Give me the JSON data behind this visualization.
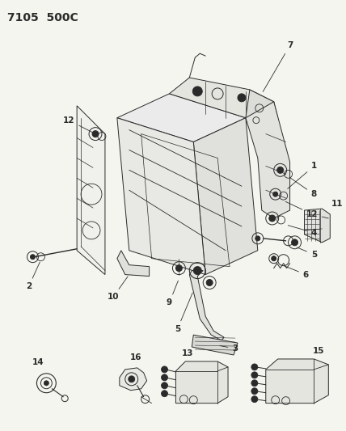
{
  "title": "7105  500C",
  "bg_color": "#f5f5f0",
  "line_color": "#2a2a2a",
  "title_fontsize": 10,
  "label_fontsize": 7.5,
  "fig_width": 4.28,
  "fig_height": 5.33,
  "dpi": 100
}
